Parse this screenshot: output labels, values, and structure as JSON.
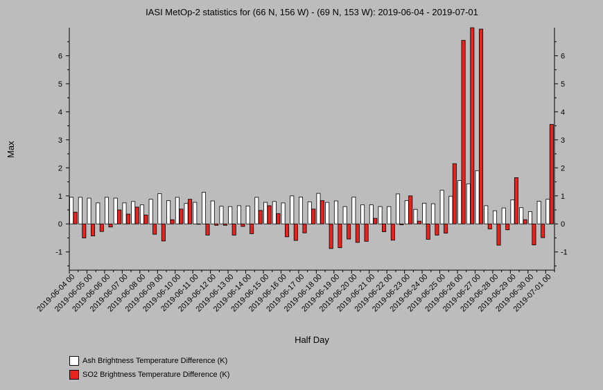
{
  "chart_data": {
    "type": "bar",
    "title": "IASI MetOp-2 statistics for (66 N, 156 W) - (69 N, 153 W): 2019-06-04 - 2019-07-01",
    "xlabel": "Half Day",
    "ylabel": "Max",
    "ylim": [
      -1.65,
      7.0
    ],
    "yticks": [
      -1,
      0,
      1,
      2,
      3,
      4,
      5,
      6
    ],
    "grid": false,
    "legend_position": "bottom-left",
    "categories": [
      "2019-06-04 00",
      "2019-06-04 12",
      "2019-06-05 00",
      "2019-06-05 12",
      "2019-06-06 00",
      "2019-06-06 12",
      "2019-06-07 00",
      "2019-06-07 12",
      "2019-06-08 00",
      "2019-06-08 12",
      "2019-06-09 00",
      "2019-06-09 12",
      "2019-06-10 00",
      "2019-06-10 12",
      "2019-06-11 00",
      "2019-06-11 12",
      "2019-06-12 00",
      "2019-06-12 12",
      "2019-06-13 00",
      "2019-06-13 12",
      "2019-06-14 00",
      "2019-06-14 12",
      "2019-06-15 00",
      "2019-06-15 12",
      "2019-06-16 00",
      "2019-06-16 12",
      "2019-06-17 00",
      "2019-06-17 12",
      "2019-06-18 00",
      "2019-06-18 12",
      "2019-06-19 00",
      "2019-06-19 12",
      "2019-06-20 00",
      "2019-06-20 12",
      "2019-06-21 00",
      "2019-06-21 12",
      "2019-06-22 00",
      "2019-06-22 12",
      "2019-06-23 00",
      "2019-06-23 12",
      "2019-06-24 00",
      "2019-06-24 12",
      "2019-06-25 00",
      "2019-06-25 12",
      "2019-06-26 00",
      "2019-06-26 12",
      "2019-06-27 00",
      "2019-06-27 12",
      "2019-06-28 00",
      "2019-06-28 12",
      "2019-06-29 00",
      "2019-06-29 12",
      "2019-06-30 00",
      "2019-06-30 12",
      "2019-07-01 00"
    ],
    "tick_labels": [
      "2019-06-04 00",
      "2019-06-05 00",
      "2019-06-06 00",
      "2019-06-07 00",
      "2019-06-08 00",
      "2019-06-09 00",
      "2019-06-10 00",
      "2019-06-11 00",
      "2019-06-12 00",
      "2019-06-13 00",
      "2019-06-14 00",
      "2019-06-15 00",
      "2019-06-16 00",
      "2019-06-17 00",
      "2019-06-18 00",
      "2019-06-19 00",
      "2019-06-20 00",
      "2019-06-21 00",
      "2019-06-22 00",
      "2019-06-23 00",
      "2019-06-24 00",
      "2019-06-25 00",
      "2019-06-26 00",
      "2019-06-27 00",
      "2019-06-28 00",
      "2019-06-29 00",
      "2019-06-30 00",
      "2019-07-01 00"
    ],
    "series": [
      {
        "name": "Ash Brightness Temperature Difference (K)",
        "color": "#ffffff",
        "values": [
          0.95,
          0.95,
          0.92,
          0.75,
          0.95,
          0.92,
          0.75,
          0.8,
          0.68,
          0.88,
          1.08,
          0.83,
          0.95,
          0.73,
          0.77,
          1.13,
          0.82,
          0.63,
          0.62,
          0.65,
          0.64,
          0.95,
          0.77,
          0.8,
          0.75,
          1.0,
          0.96,
          0.79,
          1.09,
          0.77,
          0.82,
          0.62,
          0.96,
          0.68,
          0.68,
          0.62,
          0.62,
          1.07,
          0.83,
          0.52,
          0.74,
          0.72,
          1.2,
          0.99,
          1.55,
          1.43,
          1.9,
          0.65,
          0.47,
          0.57,
          0.86,
          0.58,
          0.44,
          0.81,
          0.88
        ]
      },
      {
        "name": "SO2 Brightness Temperature Difference (K)",
        "color": "#e8231e",
        "values": [
          0.42,
          -0.5,
          -0.43,
          -0.27,
          -0.11,
          0.5,
          0.35,
          0.6,
          0.32,
          -0.37,
          -0.61,
          0.15,
          0.53,
          0.88,
          0.0,
          -0.4,
          -0.05,
          -0.05,
          -0.4,
          -0.09,
          -0.35,
          0.48,
          0.65,
          0.37,
          -0.46,
          -0.59,
          -0.32,
          0.53,
          0.83,
          -0.88,
          -0.85,
          -0.54,
          -0.66,
          -0.62,
          0.2,
          -0.28,
          -0.58,
          -0.03,
          1.0,
          0.1,
          -0.55,
          -0.4,
          -0.33,
          2.15,
          6.55,
          7.0,
          6.95,
          -0.18,
          -0.76,
          -0.21,
          1.65,
          0.15,
          -0.75,
          -0.49,
          3.55
        ]
      }
    ]
  }
}
